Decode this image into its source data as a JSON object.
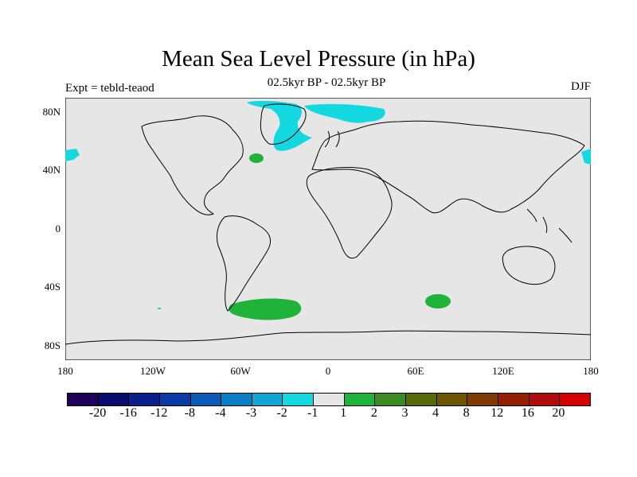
{
  "title": "Mean Sea Level Pressure (in hPa)",
  "subtitle": "02.5kyr BP - 02.5kyr BP",
  "left_label": "Expt = tebld-teaod",
  "right_label": "DJF",
  "map": {
    "background_color": "#e6e6e6",
    "y_ticks": [
      "80N",
      "40N",
      "0",
      "40S",
      "80S"
    ],
    "x_ticks": [
      "180",
      "120W",
      "60W",
      "0",
      "60E",
      "120E",
      "180"
    ]
  },
  "colorbar": {
    "colors": [
      "#1f005a",
      "#0a0b6e",
      "#0b1f8a",
      "#0a3aa6",
      "#0b5bb6",
      "#0a7ec4",
      "#11a6d4",
      "#14d8e0",
      "#e6e6e6",
      "#1fb33a",
      "#3c8a22",
      "#566a0c",
      "#6e5600",
      "#7e3a00",
      "#942000",
      "#b00c0c",
      "#d60000"
    ],
    "labels": [
      "-20",
      "-16",
      "-12",
      "-8",
      "-4",
      "-3",
      "-2",
      "-1",
      "1",
      "2",
      "3",
      "4",
      "8",
      "12",
      "16",
      "20"
    ]
  }
}
